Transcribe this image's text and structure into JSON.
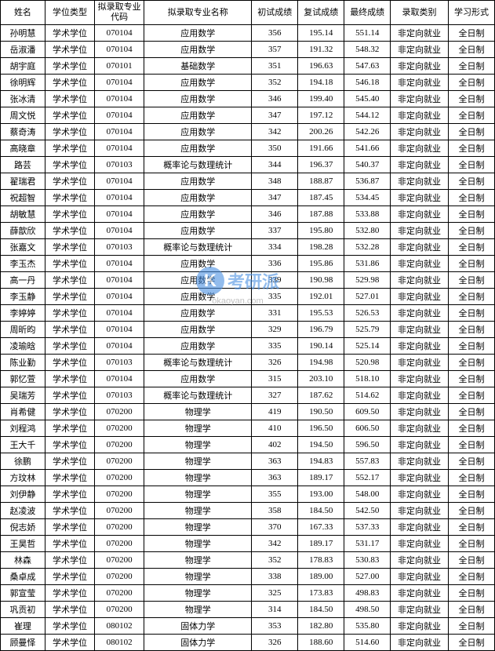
{
  "table": {
    "columns": [
      "姓名",
      "学位类型",
      "拟录取专业代码",
      "拟录取专业名称",
      "初试成绩",
      "复试成绩",
      "最终成绩",
      "录取类别",
      "学习形式"
    ],
    "rows": [
      [
        "孙明慧",
        "学术学位",
        "070104",
        "应用数学",
        "356",
        "195.14",
        "551.14",
        "非定向就业",
        "全日制"
      ],
      [
        "岳淑潘",
        "学术学位",
        "070104",
        "应用数学",
        "357",
        "191.32",
        "548.32",
        "非定向就业",
        "全日制"
      ],
      [
        "胡宇庭",
        "学术学位",
        "070101",
        "基础数学",
        "351",
        "196.63",
        "547.63",
        "非定向就业",
        "全日制"
      ],
      [
        "徐明辉",
        "学术学位",
        "070104",
        "应用数学",
        "352",
        "194.18",
        "546.18",
        "非定向就业",
        "全日制"
      ],
      [
        "张冰清",
        "学术学位",
        "070104",
        "应用数学",
        "346",
        "199.40",
        "545.40",
        "非定向就业",
        "全日制"
      ],
      [
        "周文悦",
        "学术学位",
        "070104",
        "应用数学",
        "347",
        "197.12",
        "544.12",
        "非定向就业",
        "全日制"
      ],
      [
        "蔡奇涛",
        "学术学位",
        "070104",
        "应用数学",
        "342",
        "200.26",
        "542.26",
        "非定向就业",
        "全日制"
      ],
      [
        "高晓章",
        "学术学位",
        "070104",
        "应用数学",
        "350",
        "191.66",
        "541.66",
        "非定向就业",
        "全日制"
      ],
      [
        "路芸",
        "学术学位",
        "070103",
        "概率论与数理统计",
        "344",
        "196.37",
        "540.37",
        "非定向就业",
        "全日制"
      ],
      [
        "翟瑞君",
        "学术学位",
        "070104",
        "应用数学",
        "348",
        "188.87",
        "536.87",
        "非定向就业",
        "全日制"
      ],
      [
        "祝超智",
        "学术学位",
        "070104",
        "应用数学",
        "347",
        "187.45",
        "534.45",
        "非定向就业",
        "全日制"
      ],
      [
        "胡敏慧",
        "学术学位",
        "070104",
        "应用数学",
        "346",
        "187.88",
        "533.88",
        "非定向就业",
        "全日制"
      ],
      [
        "薛歆欣",
        "学术学位",
        "070104",
        "应用数学",
        "337",
        "195.80",
        "532.80",
        "非定向就业",
        "全日制"
      ],
      [
        "张嘉文",
        "学术学位",
        "070103",
        "概率论与数理统计",
        "334",
        "198.28",
        "532.28",
        "非定向就业",
        "全日制"
      ],
      [
        "李玉杰",
        "学术学位",
        "070104",
        "应用数学",
        "336",
        "195.86",
        "531.86",
        "非定向就业",
        "全日制"
      ],
      [
        "高一丹",
        "学术学位",
        "070104",
        "应用数学",
        "339",
        "190.98",
        "529.98",
        "非定向就业",
        "全日制"
      ],
      [
        "李玉静",
        "学术学位",
        "070104",
        "应用数学",
        "335",
        "192.01",
        "527.01",
        "非定向就业",
        "全日制"
      ],
      [
        "李婷婷",
        "学术学位",
        "070104",
        "应用数学",
        "331",
        "195.53",
        "526.53",
        "非定向就业",
        "全日制"
      ],
      [
        "周昕昀",
        "学术学位",
        "070104",
        "应用数学",
        "329",
        "196.79",
        "525.79",
        "非定向就业",
        "全日制"
      ],
      [
        "凌瑜晗",
        "学术学位",
        "070104",
        "应用数学",
        "335",
        "190.14",
        "525.14",
        "非定向就业",
        "全日制"
      ],
      [
        "陈业勤",
        "学术学位",
        "070103",
        "概率论与数理统计",
        "326",
        "194.98",
        "520.98",
        "非定向就业",
        "全日制"
      ],
      [
        "郭忆萱",
        "学术学位",
        "070104",
        "应用数学",
        "315",
        "203.10",
        "518.10",
        "非定向就业",
        "全日制"
      ],
      [
        "吴瑞芳",
        "学术学位",
        "070103",
        "概率论与数理统计",
        "327",
        "187.62",
        "514.62",
        "非定向就业",
        "全日制"
      ],
      [
        "肖希健",
        "学术学位",
        "070200",
        "物理学",
        "419",
        "190.50",
        "609.50",
        "非定向就业",
        "全日制"
      ],
      [
        "刘程鸿",
        "学术学位",
        "070200",
        "物理学",
        "410",
        "196.50",
        "606.50",
        "非定向就业",
        "全日制"
      ],
      [
        "王大千",
        "学术学位",
        "070200",
        "物理学",
        "402",
        "194.50",
        "596.50",
        "非定向就业",
        "全日制"
      ],
      [
        "徐鹏",
        "学术学位",
        "070200",
        "物理学",
        "363",
        "194.83",
        "557.83",
        "非定向就业",
        "全日制"
      ],
      [
        "方玟林",
        "学术学位",
        "070200",
        "物理学",
        "363",
        "189.17",
        "552.17",
        "非定向就业",
        "全日制"
      ],
      [
        "刘伊静",
        "学术学位",
        "070200",
        "物理学",
        "355",
        "193.00",
        "548.00",
        "非定向就业",
        "全日制"
      ],
      [
        "赵凌波",
        "学术学位",
        "070200",
        "物理学",
        "358",
        "184.50",
        "542.50",
        "非定向就业",
        "全日制"
      ],
      [
        "倪志娇",
        "学术学位",
        "070200",
        "物理学",
        "370",
        "167.33",
        "537.33",
        "非定向就业",
        "全日制"
      ],
      [
        "王昊哲",
        "学术学位",
        "070200",
        "物理学",
        "342",
        "189.17",
        "531.17",
        "非定向就业",
        "全日制"
      ],
      [
        "林森",
        "学术学位",
        "070200",
        "物理学",
        "352",
        "178.83",
        "530.83",
        "非定向就业",
        "全日制"
      ],
      [
        "桑卓成",
        "学术学位",
        "070200",
        "物理学",
        "338",
        "189.00",
        "527.00",
        "非定向就业",
        "全日制"
      ],
      [
        "郭宣莹",
        "学术学位",
        "070200",
        "物理学",
        "325",
        "173.83",
        "498.83",
        "非定向就业",
        "全日制"
      ],
      [
        "巩贡初",
        "学术学位",
        "070200",
        "物理学",
        "314",
        "184.50",
        "498.50",
        "非定向就业",
        "全日制"
      ],
      [
        "崔理",
        "学术学位",
        "080102",
        "固体力学",
        "353",
        "182.80",
        "535.80",
        "非定向就业",
        "全日制"
      ],
      [
        "顾曼怿",
        "学术学位",
        "080102",
        "固体力学",
        "326",
        "188.60",
        "514.60",
        "非定向就业",
        "全日制"
      ]
    ],
    "column_classes": [
      "col-name",
      "col-degree",
      "col-code",
      "col-major",
      "col-score1",
      "col-score2",
      "col-score3",
      "col-category",
      "col-mode"
    ],
    "border_color": "#000000",
    "background_color": "#ffffff",
    "text_color": "#000000",
    "font_size": 11
  },
  "watermark": {
    "icon_letter": "K",
    "brand_text": "考研派",
    "url_text": "okaoyan.com",
    "icon_color": "#4a90e2",
    "text_color": "#4a90e2",
    "url_color": "#999999"
  }
}
